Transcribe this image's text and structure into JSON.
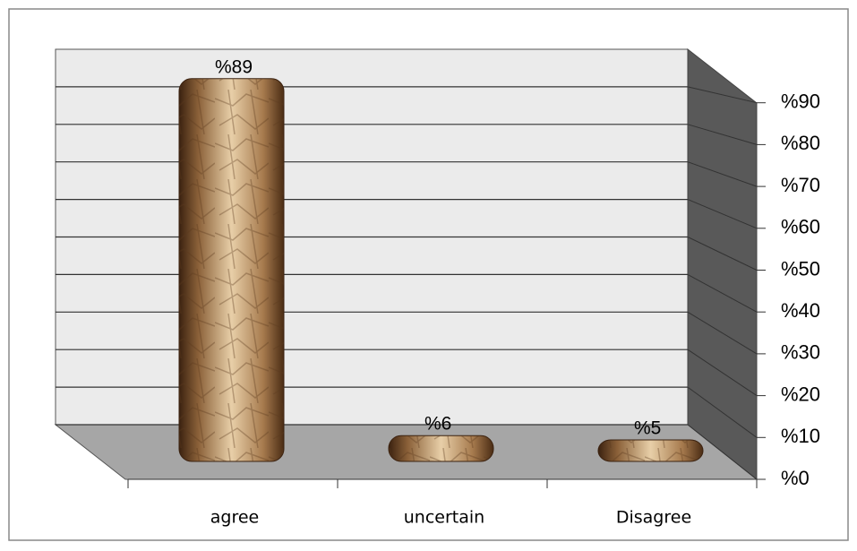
{
  "chart_data": {
    "type": "bar",
    "categories": [
      "agree",
      "uncertain",
      "Disagree"
    ],
    "values": [
      89,
      6,
      5
    ],
    "value_labels": [
      "%89",
      "%6",
      "%5"
    ],
    "color": "#b58a5c",
    "ylim": [
      0,
      100
    ],
    "yticks": [
      {
        "value": 0,
        "label": "%0"
      },
      {
        "value": 10,
        "label": "%10"
      },
      {
        "value": 20,
        "label": "%20"
      },
      {
        "value": 30,
        "label": "%30"
      },
      {
        "value": 40,
        "label": "%40"
      },
      {
        "value": 50,
        "label": "%50"
      },
      {
        "value": 60,
        "label": "%60"
      },
      {
        "value": 70,
        "label": "%70"
      },
      {
        "value": 80,
        "label": "%80"
      },
      {
        "value": 90,
        "label": "%90"
      }
    ],
    "grid": true
  }
}
